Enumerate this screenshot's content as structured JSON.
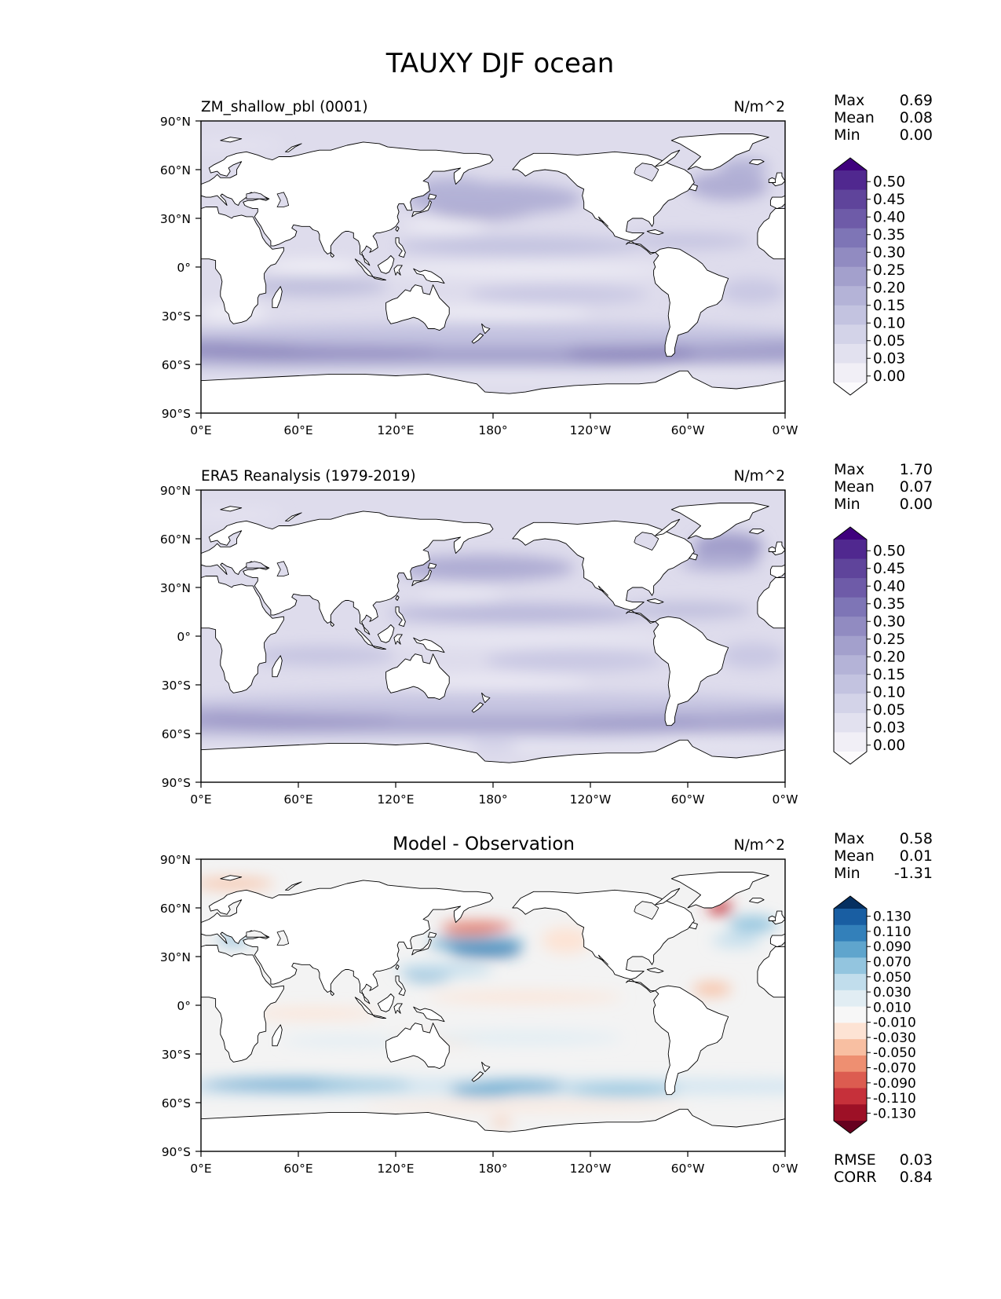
{
  "title": "TAUXY DJF ocean",
  "colors": {
    "purple_scale": [
      "#fcfbfd",
      "#f1eff6",
      "#e2e1ef",
      "#d3d3e8",
      "#c3c3e0",
      "#b4b3d7",
      "#a3a0cc",
      "#918bc1",
      "#7e75b6",
      "#6e5ba8",
      "#5f449b",
      "#50288f",
      "#3f007d"
    ],
    "diff_scale": [
      "#67001f",
      "#9d1026",
      "#c6303a",
      "#dc5c50",
      "#ee8f71",
      "#f8bfa2",
      "#fde3d4",
      "#f7f7f7",
      "#e1edf3",
      "#c1ddec",
      "#93c5df",
      "#5fa5cd",
      "#3380ba",
      "#195ea2",
      "#053061"
    ],
    "land": "#ffffff",
    "ocean_base": "#eceaf4"
  },
  "panels": [
    {
      "title": "ZM_shallow_pbl (0001)",
      "title_position": "left",
      "units": "N/m^2",
      "stats": [
        {
          "label": "Max",
          "value": "0.69"
        },
        {
          "label": "Mean",
          "value": "0.08"
        },
        {
          "label": "Min",
          "value": "0.00"
        }
      ],
      "colorbar": {
        "type": "purple",
        "ticks": [
          "0.50",
          "0.45",
          "0.40",
          "0.35",
          "0.30",
          "0.25",
          "0.20",
          "0.15",
          "0.10",
          "0.05",
          "0.03",
          "0.00"
        ]
      },
      "field": "model"
    },
    {
      "title": "ERA5 Reanalysis (1979-2019)",
      "title_position": "left",
      "units": "N/m^2",
      "stats": [
        {
          "label": "Max",
          "value": "1.70"
        },
        {
          "label": "Mean",
          "value": "0.07"
        },
        {
          "label": "Min",
          "value": "0.00"
        }
      ],
      "colorbar": {
        "type": "purple",
        "ticks": [
          "0.50",
          "0.45",
          "0.40",
          "0.35",
          "0.30",
          "0.25",
          "0.20",
          "0.15",
          "0.10",
          "0.05",
          "0.03",
          "0.00"
        ]
      },
      "field": "obs"
    },
    {
      "title": "Model - Observation",
      "title_position": "center",
      "units": "N/m^2",
      "stats": [
        {
          "label": "Max",
          "value": "0.58"
        },
        {
          "label": "Mean",
          "value": "0.01"
        },
        {
          "label": "Min",
          "value": "-1.31"
        }
      ],
      "colorbar": {
        "type": "diff",
        "ticks": [
          "0.130",
          "0.110",
          "0.090",
          "0.070",
          "0.050",
          "0.030",
          "0.010",
          "-0.010",
          "-0.030",
          "-0.050",
          "-0.070",
          "-0.090",
          "-0.110",
          "-0.130"
        ]
      },
      "field": "diff",
      "metrics": [
        {
          "label": "RMSE",
          "value": "0.03"
        },
        {
          "label": "CORR",
          "value": "0.84"
        }
      ]
    }
  ],
  "chart_data": {
    "type": "heatmap",
    "title": "TAUXY DJF ocean",
    "x_ticks": [
      "0°E",
      "60°E",
      "120°E",
      "180°",
      "120°W",
      "60°W",
      "0°W"
    ],
    "y_ticks": [
      "90°N",
      "60°N",
      "30°N",
      "0°",
      "30°S",
      "60°S",
      "90°S"
    ],
    "xlim": [
      0,
      360
    ],
    "ylim": [
      -90,
      90
    ],
    "panels": [
      {
        "name": "ZM_shallow_pbl (0001)",
        "units": "N/m^2",
        "max": 0.69,
        "mean": 0.08,
        "min": 0.0
      },
      {
        "name": "ERA5 Reanalysis (1979-2019)",
        "units": "N/m^2",
        "max": 1.7,
        "mean": 0.07,
        "min": 0.0
      },
      {
        "name": "Model - Observation",
        "units": "N/m^2",
        "max": 0.58,
        "mean": 0.01,
        "min": -1.31,
        "rmse": 0.03,
        "corr": 0.84
      }
    ]
  }
}
